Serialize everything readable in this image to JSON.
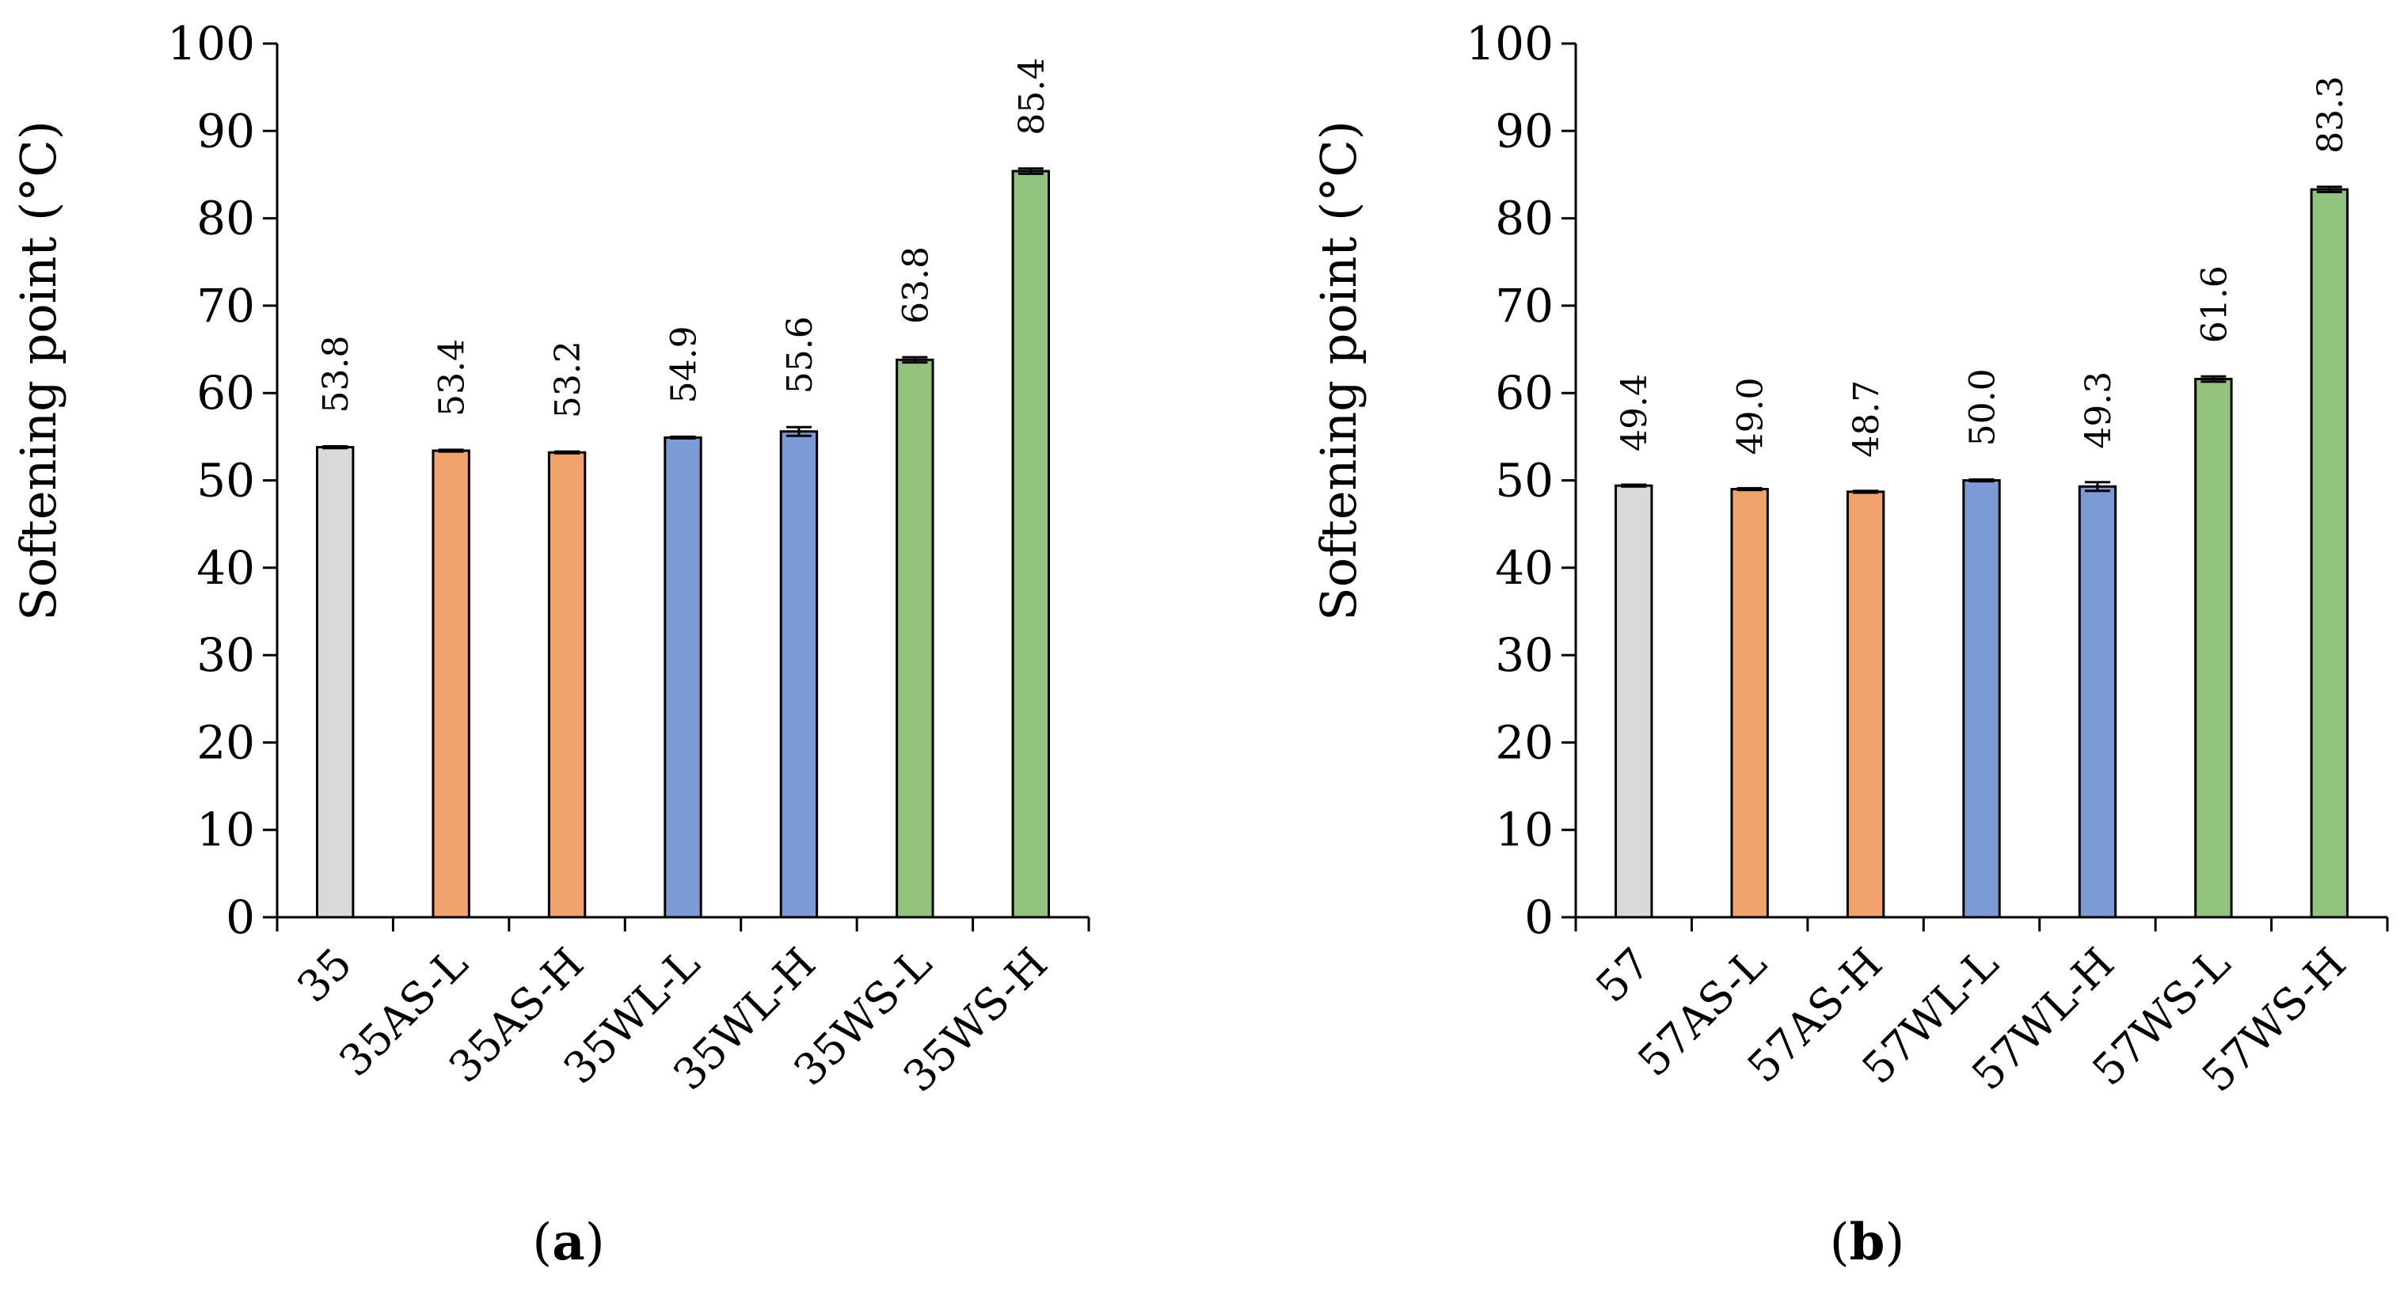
{
  "chart_data": [
    {
      "type": "bar",
      "panel": "a",
      "caption_open": "(",
      "caption_letter": "a",
      "caption_close": ")",
      "ylabel": "Softening point (°C)",
      "ylim": [
        0,
        100
      ],
      "yticks": [
        0,
        10,
        20,
        30,
        40,
        50,
        60,
        70,
        80,
        90,
        100
      ],
      "categories": [
        "35",
        "35AS-L",
        "35AS-H",
        "35WL-L",
        "35WL-H",
        "35WS-L",
        "35WS-H"
      ],
      "values": [
        53.8,
        53.4,
        53.2,
        54.9,
        55.6,
        63.8,
        85.4
      ],
      "value_labels": [
        "53.8",
        "53.4",
        "53.2",
        "54.9",
        "55.6",
        "63.8",
        "85.4"
      ],
      "errors": [
        0.1,
        0.1,
        0.1,
        0.1,
        0.5,
        0.3,
        0.3
      ],
      "colors": [
        "#d9d9d9",
        "#f0a46c",
        "#f0a46c",
        "#7b9bd6",
        "#7b9bd6",
        "#93c47d",
        "#93c47d"
      ]
    },
    {
      "type": "bar",
      "panel": "b",
      "caption_open": "(",
      "caption_letter": "b",
      "caption_close": ")",
      "ylabel": "Softening point (°C)",
      "ylim": [
        0,
        100
      ],
      "yticks": [
        0,
        10,
        20,
        30,
        40,
        50,
        60,
        70,
        80,
        90,
        100
      ],
      "categories": [
        "57",
        "57AS-L",
        "57AS-H",
        "57WL-L",
        "57WL-H",
        "57WS-L",
        "57WS-H"
      ],
      "values": [
        49.4,
        49.0,
        48.7,
        50.0,
        49.3,
        61.6,
        83.3
      ],
      "value_labels": [
        "49.4",
        "49.0",
        "48.7",
        "50.0",
        "49.3",
        "61.6",
        "83.3"
      ],
      "errors": [
        0.1,
        0.1,
        0.1,
        0.1,
        0.5,
        0.3,
        0.3
      ],
      "colors": [
        "#d9d9d9",
        "#f0a46c",
        "#f0a46c",
        "#7b9bd6",
        "#7b9bd6",
        "#93c47d",
        "#93c47d"
      ]
    }
  ]
}
